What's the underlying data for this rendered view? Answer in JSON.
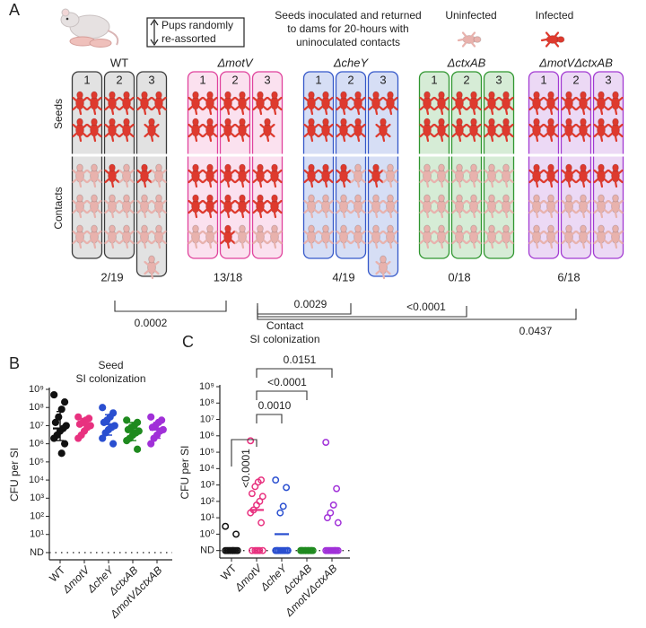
{
  "panel_a": {
    "letter": "A",
    "reassort_label": [
      "Pups randomly",
      "re-assorted"
    ],
    "description": [
      "Seeds inoculated and returned",
      "to dams for 20-hours with",
      "uninoculated contacts"
    ],
    "legend": [
      {
        "label": "Uninfected",
        "color": "#e8b2ad"
      },
      {
        "label": "Infected",
        "color": "#de3a2e"
      }
    ],
    "row_labels": [
      "Seeds",
      "Contacts"
    ],
    "groups": [
      {
        "name": "WT",
        "color": "#3a3a3a",
        "fill": "#e2e2e2",
        "ratio": "2/19",
        "litters": [
          {
            "label": "1",
            "seeds": 4,
            "contacts_infected": 0,
            "contacts_uninfected": 6
          },
          {
            "label": "2",
            "seeds": 4,
            "contacts_infected": 1,
            "contacts_uninfected": 5
          },
          {
            "label": "3",
            "seeds": 3,
            "contacts_infected": 1,
            "contacts_uninfected": 6
          }
        ]
      },
      {
        "name": "ΔmotV",
        "color": "#e0429c",
        "fill": "#fbe1ef",
        "ratio": "13/18",
        "litters": [
          {
            "label": "1",
            "seeds": 4,
            "contacts_infected": 4,
            "contacts_uninfected": 2
          },
          {
            "label": "2",
            "seeds": 4,
            "contacts_infected": 5,
            "contacts_uninfected": 1
          },
          {
            "label": "3",
            "seeds": 3,
            "contacts_infected": 4,
            "contacts_uninfected": 2
          }
        ]
      },
      {
        "name": "ΔcheY",
        "color": "#3457c9",
        "fill": "#d6def5",
        "ratio": "4/19",
        "litters": [
          {
            "label": "1",
            "seeds": 4,
            "contacts_infected": 2,
            "contacts_uninfected": 4
          },
          {
            "label": "2",
            "seeds": 4,
            "contacts_infected": 1,
            "contacts_uninfected": 5
          },
          {
            "label": "3",
            "seeds": 3,
            "contacts_infected": 1,
            "contacts_uninfected": 6
          }
        ]
      },
      {
        "name": "ΔctxAB",
        "color": "#2f962f",
        "fill": "#d6ecd6",
        "ratio": "0/18",
        "litters": [
          {
            "label": "1",
            "seeds": 4,
            "contacts_infected": 0,
            "contacts_uninfected": 6
          },
          {
            "label": "2",
            "seeds": 4,
            "contacts_infected": 0,
            "contacts_uninfected": 6
          },
          {
            "label": "3",
            "seeds": 4,
            "contacts_infected": 0,
            "contacts_uninfected": 6
          }
        ]
      },
      {
        "name": "ΔmotVΔctxAB",
        "color": "#a23ad2",
        "fill": "#ecd9f5",
        "ratio": "6/18",
        "litters": [
          {
            "label": "1",
            "seeds": 4,
            "contacts_infected": 2,
            "contacts_uninfected": 4
          },
          {
            "label": "2",
            "seeds": 4,
            "contacts_infected": 2,
            "contacts_uninfected": 4
          },
          {
            "label": "3",
            "seeds": 4,
            "contacts_infected": 2,
            "contacts_uninfected": 4
          }
        ]
      }
    ],
    "comparisons": [
      {
        "groups": [
          0,
          1
        ],
        "label": "0.0002"
      },
      {
        "groups": [
          1,
          2
        ],
        "label": "0.0029"
      },
      {
        "groups": [
          1,
          3
        ],
        "label": "<0.0001"
      },
      {
        "groups": [
          1,
          4
        ],
        "label": "0.0437"
      }
    ]
  },
  "chart_data": [
    {
      "type": "scatter",
      "letter": "B",
      "title": [
        "Seed",
        "SI colonization"
      ],
      "ylabel": "CFU per SI",
      "log": true,
      "markers": "filled",
      "categories": [
        "WT",
        "ΔmotV",
        "ΔcheY",
        "ΔctxAB",
        "ΔmotVΔctxAB"
      ],
      "ylim": [
        0.4,
        1000000000
      ],
      "yticks": [
        {
          "value": 1,
          "label": "ND"
        },
        {
          "value": 10,
          "label": "10¹"
        },
        {
          "value": 100,
          "label": "10²"
        },
        {
          "value": 1000,
          "label": "10³"
        },
        {
          "value": 10000,
          "label": "10⁴"
        },
        {
          "value": 100000,
          "label": "10⁵"
        },
        {
          "value": 1000000,
          "label": "10⁶"
        },
        {
          "value": 10000000,
          "label": "10⁷"
        },
        {
          "value": 100000000,
          "label": "10⁸"
        },
        {
          "value": 1000000000,
          "label": "10⁹"
        }
      ],
      "series": [
        {
          "color": "#111111",
          "values": [
            500000000,
            200000000,
            80000000,
            30000000,
            15000000,
            10000000,
            7000000,
            5000000,
            3000000,
            2000000,
            1000000,
            300000
          ],
          "center": 7000000,
          "whisker": [
            1500000,
            60000000
          ]
        },
        {
          "color": "#e8317f",
          "values": [
            30000000,
            25000000,
            20000000,
            15000000,
            12000000,
            10000000,
            8000000,
            5000000,
            3000000,
            2000000
          ],
          "center": 12000000,
          "whisker": [
            5000000,
            25000000
          ]
        },
        {
          "color": "#2a4fd0",
          "values": [
            100000000,
            50000000,
            30000000,
            20000000,
            15000000,
            10000000,
            8000000,
            6000000,
            4000000,
            2000000,
            1000000
          ],
          "center": 12000000,
          "whisker": [
            3000000,
            40000000
          ]
        },
        {
          "color": "#1f8a1f",
          "values": [
            20000000,
            15000000,
            10000000,
            8000000,
            6000000,
            5000000,
            4000000,
            3000000,
            2000000,
            1500000,
            500000
          ],
          "center": 5000000,
          "whisker": [
            1500000,
            15000000
          ]
        },
        {
          "color": "#a030d8",
          "values": [
            30000000,
            20000000,
            15000000,
            10000000,
            8000000,
            6000000,
            5000000,
            3000000,
            2000000,
            1000000
          ],
          "center": 6000000,
          "whisker": [
            2000000,
            15000000
          ]
        }
      ]
    },
    {
      "type": "scatter",
      "letter": "C",
      "title": [
        "Contact",
        "SI colonization"
      ],
      "ylabel": "CFU per SI",
      "log": true,
      "markers": "open",
      "categories": [
        "WT",
        "ΔmotV",
        "ΔcheY",
        "ΔctxAB",
        "ΔmotVΔctxAB"
      ],
      "ylim": [
        0.035,
        1000000000
      ],
      "yticks": [
        {
          "value": 0.1,
          "label": "ND"
        },
        {
          "value": 1,
          "label": "10⁰"
        },
        {
          "value": 10,
          "label": "10¹"
        },
        {
          "value": 100,
          "label": "10²"
        },
        {
          "value": 1000,
          "label": "10³"
        },
        {
          "value": 10000,
          "label": "10⁴"
        },
        {
          "value": 100000,
          "label": "10⁵"
        },
        {
          "value": 1000000,
          "label": "10⁶"
        },
        {
          "value": 10000000,
          "label": "10⁷"
        },
        {
          "value": 100000000,
          "label": "10⁸"
        },
        {
          "value": 1000000000,
          "label": "10⁹"
        }
      ],
      "series": [
        {
          "color": "#111111",
          "values": [
            3,
            1,
            0.1,
            0.1,
            0.1,
            0.1,
            0.1,
            0.1,
            0.1,
            0.1,
            0.1,
            0.1
          ],
          "center": 0.1
        },
        {
          "color": "#e8317f",
          "values": [
            500000,
            2000,
            1500,
            800,
            300,
            200,
            100,
            60,
            30,
            20,
            5,
            0.1,
            0.1,
            0.1,
            0.1,
            0.1,
            0.1
          ],
          "center": 30
        },
        {
          "color": "#2a4fd0",
          "values": [
            2000,
            700,
            50,
            20,
            0.1,
            0.1,
            0.1,
            0.1,
            0.1,
            0.1,
            0.1,
            0.1,
            0.1,
            0.1,
            0.1
          ],
          "center": 1
        },
        {
          "color": "#1f8a1f",
          "values": [
            0.1,
            0.1,
            0.1,
            0.1,
            0.1,
            0.1,
            0.1,
            0.1,
            0.1,
            0.1,
            0.1,
            0.1,
            0.1,
            0.1
          ],
          "center": 0.1
        },
        {
          "color": "#a030d8",
          "values": [
            400000,
            600,
            60,
            20,
            10,
            5,
            0.1,
            0.1,
            0.1,
            0.1,
            0.1,
            0.1,
            0.1,
            0.1,
            0.1,
            0.1
          ],
          "center": 0.1
        }
      ],
      "comparisons": [
        {
          "groups": [
            0,
            1
          ],
          "label": "<0.0001"
        },
        {
          "groups": [
            1,
            2
          ],
          "label": "0.0010"
        },
        {
          "groups": [
            1,
            3
          ],
          "label": "<0.0001"
        },
        {
          "groups": [
            1,
            4
          ],
          "label": "0.0151"
        }
      ]
    }
  ]
}
